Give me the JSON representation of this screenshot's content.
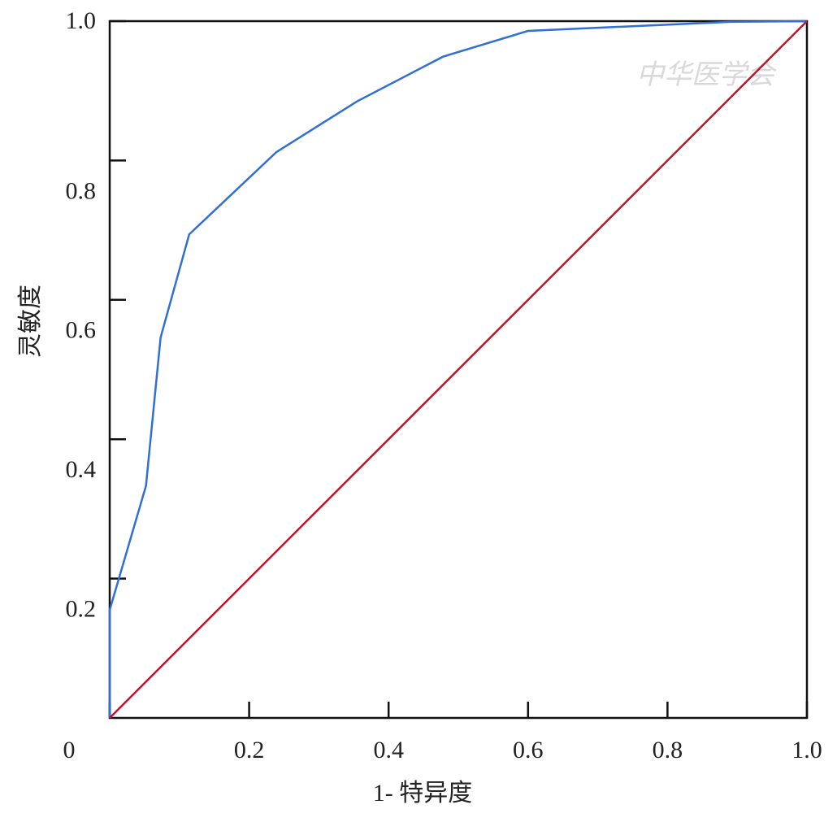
{
  "chart_data": {
    "type": "line",
    "xlabel": "1- 特异度",
    "ylabel": "灵敏度",
    "watermark": "中华医学会",
    "xlim": [
      0,
      1.0
    ],
    "ylim": [
      0,
      1.0
    ],
    "xticks": [
      0,
      0.2,
      0.4,
      0.6,
      0.8,
      {
        "value": 1.0,
        "label": "1.0"
      }
    ],
    "yticks": [
      0.2,
      0.4,
      0.6,
      0.8,
      {
        "value": 1.0,
        "label": "1.0"
      }
    ],
    "series": [
      {
        "color": "#2f6fd6",
        "x": [
          0,
          0,
          0.052,
          0.073,
          0.114,
          0.239,
          0.355,
          0.478,
          0.6,
          0.89,
          1.0
        ],
        "values": [
          0,
          0.155,
          0.333,
          0.546,
          0.694,
          0.812,
          0.885,
          0.949,
          0.986,
          0.999,
          1.0
        ]
      },
      {
        "color": "#c0142a",
        "x": [
          0,
          1.0
        ],
        "values": [
          0,
          1.0
        ]
      }
    ]
  }
}
